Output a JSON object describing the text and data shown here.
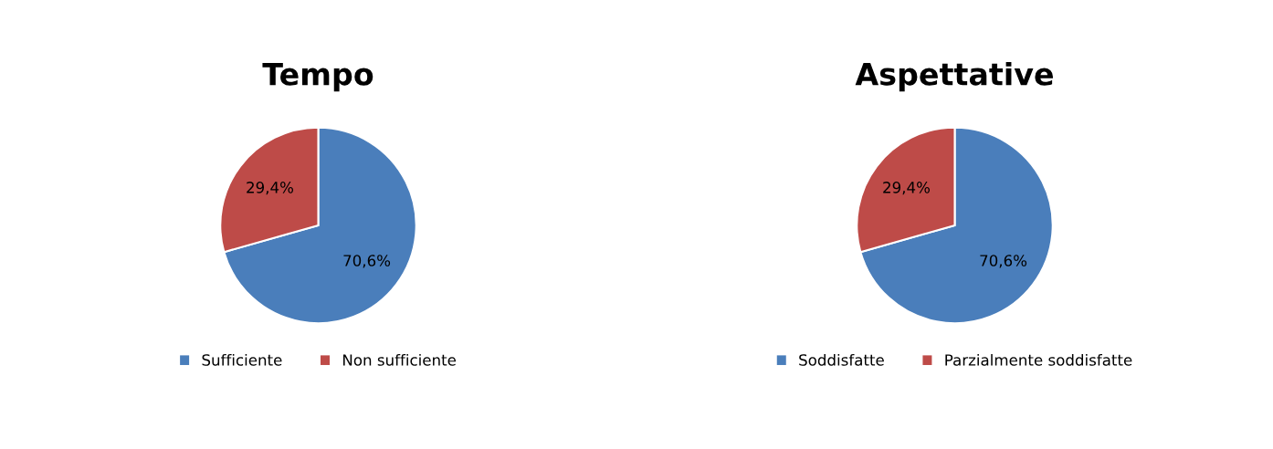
{
  "chart_data": [
    {
      "type": "pie",
      "title": "Tempo",
      "categories": [
        "Sufficiente",
        "Non sufficiente"
      ],
      "values": [
        70.6,
        29.4
      ],
      "colors": [
        "#4a7ebb",
        "#be4b48"
      ],
      "value_labels": [
        "70,6%",
        "29,4%"
      ],
      "legend": "bottom"
    },
    {
      "type": "pie",
      "title": "Aspettative",
      "categories": [
        "Soddisfatte",
        "Parzialmente soddisfatte"
      ],
      "values": [
        70.6,
        29.4
      ],
      "colors": [
        "#4a7ebb",
        "#be4b48"
      ],
      "value_labels": [
        "70,6%",
        "29,4%"
      ],
      "legend": "bottom"
    }
  ]
}
